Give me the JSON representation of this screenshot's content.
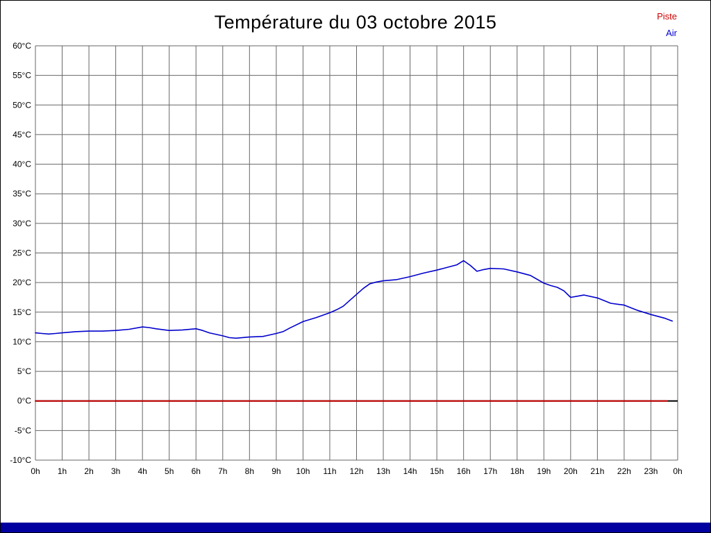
{
  "page": {
    "title": "Température du 03 octobre 2015"
  },
  "legend": {
    "items": [
      {
        "label": "Piste",
        "color": "#cc0000"
      },
      {
        "label": "Air",
        "color": "#0000cc"
      }
    ]
  },
  "footer": {
    "bar_color": "#0000a0"
  },
  "chart_data": {
    "type": "line",
    "title": "Température du 03 octobre 2015",
    "xlabel": "",
    "ylabel": "",
    "xlim": [
      0,
      24
    ],
    "ylim": [
      -10,
      60
    ],
    "y_tick_step": 5,
    "grid": true,
    "legend_position": "top-right",
    "grid_color": "#666666",
    "zero_axis": {
      "value": 0,
      "color": "#000000"
    },
    "y_tick_labels": [
      "60°C",
      "55°C",
      "50°C",
      "45°C",
      "40°C",
      "35°C",
      "30°C",
      "25°C",
      "20°C",
      "15°C",
      "10°C",
      "5°C",
      "0°C",
      "-5°C",
      "-10°C"
    ],
    "x_tick_labels": [
      "0h",
      "1h",
      "2h",
      "3h",
      "4h",
      "5h",
      "6h",
      "7h",
      "8h",
      "9h",
      "10h",
      "11h",
      "12h",
      "13h",
      "14h",
      "15h",
      "16h",
      "17h",
      "18h",
      "19h",
      "20h",
      "21h",
      "22h",
      "23h",
      "0h"
    ],
    "series": [
      {
        "name": "Piste",
        "color": "#cc0000",
        "stroke_width": 2,
        "x": [
          0,
          23.6
        ],
        "values": [
          0,
          0
        ]
      },
      {
        "name": "Air",
        "color": "#0000cc",
        "stroke_width": 1.6,
        "x": [
          0,
          0.25,
          0.5,
          0.75,
          1,
          1.5,
          2,
          2.5,
          3,
          3.5,
          4,
          4.25,
          4.5,
          5,
          5.5,
          6,
          6.25,
          6.5,
          7,
          7.25,
          7.5,
          8,
          8.5,
          9,
          9.25,
          9.5,
          10,
          10.5,
          11,
          11.25,
          11.5,
          11.75,
          12,
          12.25,
          12.5,
          12.75,
          13,
          13.5,
          14,
          14.5,
          15,
          15.5,
          15.75,
          16,
          16.25,
          16.5,
          16.75,
          17,
          17.5,
          18,
          18.5,
          19,
          19.25,
          19.5,
          19.75,
          20,
          20.25,
          20.5,
          21,
          21.5,
          22,
          22.5,
          23,
          23.5,
          23.8
        ],
        "values": [
          11.5,
          11.4,
          11.3,
          11.4,
          11.5,
          11.7,
          11.8,
          11.8,
          11.9,
          12.1,
          12.5,
          12.4,
          12.2,
          11.9,
          12.0,
          12.2,
          11.9,
          11.5,
          11.0,
          10.7,
          10.6,
          10.8,
          10.9,
          11.4,
          11.7,
          12.3,
          13.4,
          14.1,
          14.9,
          15.4,
          16.0,
          17.0,
          18.0,
          19.0,
          19.8,
          20.1,
          20.3,
          20.5,
          21.0,
          21.6,
          22.1,
          22.7,
          23.0,
          23.7,
          22.9,
          21.9,
          22.2,
          22.4,
          22.3,
          21.8,
          21.2,
          19.9,
          19.5,
          19.2,
          18.6,
          17.5,
          17.7,
          17.9,
          17.4,
          16.5,
          16.2,
          15.3,
          14.6,
          14.0,
          13.5
        ]
      }
    ]
  }
}
